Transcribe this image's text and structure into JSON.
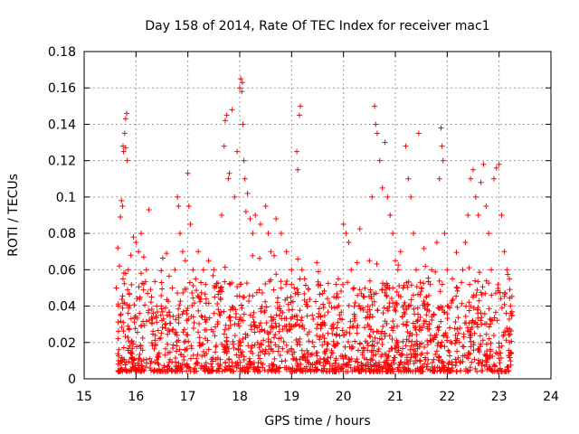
{
  "chart_data": {
    "type": "scatter",
    "title": "Day 158 of 2014, Rate Of TEC Index for receiver mac1",
    "xlabel": "GPS time / hours",
    "ylabel": "ROTI / TECUs",
    "xlim": [
      15,
      24
    ],
    "ylim": [
      0,
      0.18
    ],
    "x_ticks": [
      "15",
      "16",
      "17",
      "18",
      "19",
      "20",
      "21",
      "22",
      "23",
      "24"
    ],
    "y_ticks": [
      "0",
      "0.02",
      "0.04",
      "0.06",
      "0.08",
      "0.1",
      "0.12",
      "0.14",
      "0.16",
      "0.18"
    ],
    "grid": true,
    "marker": "+",
    "series_color": "#ff0000",
    "series": [
      {
        "name": "ROTI",
        "points": [
          [
            15.65,
            0.072
          ],
          [
            15.68,
            0.062
          ],
          [
            15.7,
            0.089
          ],
          [
            15.72,
            0.098
          ],
          [
            15.74,
            0.095
          ],
          [
            15.75,
            0.128
          ],
          [
            15.76,
            0.125
          ],
          [
            15.78,
            0.135
          ],
          [
            15.8,
            0.143
          ],
          [
            15.82,
            0.146
          ],
          [
            15.8,
            0.127
          ],
          [
            15.83,
            0.12
          ],
          [
            15.62,
            0.05
          ],
          [
            15.66,
            0.04
          ],
          [
            15.7,
            0.035
          ],
          [
            15.75,
            0.055
          ],
          [
            15.8,
            0.058
          ],
          [
            15.85,
            0.06
          ],
          [
            15.9,
            0.068
          ],
          [
            15.95,
            0.078
          ],
          [
            16.0,
            0.075
          ],
          [
            16.05,
            0.07
          ],
          [
            16.1,
            0.08
          ],
          [
            16.15,
            0.067
          ],
          [
            16.2,
            0.06
          ],
          [
            16.25,
            0.093
          ],
          [
            16.3,
            0.045
          ],
          [
            16.4,
            0.04
          ],
          [
            16.5,
            0.032
          ],
          [
            16.6,
            0.035
          ],
          [
            16.7,
            0.05
          ],
          [
            16.75,
            0.06
          ],
          [
            16.8,
            0.1
          ],
          [
            16.82,
            0.095
          ],
          [
            16.85,
            0.08
          ],
          [
            16.9,
            0.07
          ],
          [
            16.95,
            0.065
          ],
          [
            17.0,
            0.113
          ],
          [
            17.02,
            0.095
          ],
          [
            17.05,
            0.085
          ],
          [
            17.1,
            0.06
          ],
          [
            17.15,
            0.055
          ],
          [
            17.2,
            0.07
          ],
          [
            17.3,
            0.06
          ],
          [
            17.4,
            0.065
          ],
          [
            17.5,
            0.06
          ],
          [
            17.6,
            0.048
          ],
          [
            17.65,
            0.09
          ],
          [
            17.7,
            0.128
          ],
          [
            17.72,
            0.142
          ],
          [
            17.75,
            0.145
          ],
          [
            17.78,
            0.11
          ],
          [
            17.8,
            0.113
          ],
          [
            17.85,
            0.148
          ],
          [
            17.9,
            0.1
          ],
          [
            17.95,
            0.125
          ],
          [
            18.0,
            0.16
          ],
          [
            18.02,
            0.165
          ],
          [
            18.04,
            0.158
          ],
          [
            18.05,
            0.163
          ],
          [
            18.06,
            0.14
          ],
          [
            18.08,
            0.12
          ],
          [
            18.1,
            0.11
          ],
          [
            18.12,
            0.092
          ],
          [
            18.15,
            0.102
          ],
          [
            18.2,
            0.088
          ],
          [
            18.25,
            0.08
          ],
          [
            18.3,
            0.09
          ],
          [
            18.4,
            0.085
          ],
          [
            18.5,
            0.095
          ],
          [
            18.55,
            0.08
          ],
          [
            18.6,
            0.07
          ],
          [
            18.7,
            0.088
          ],
          [
            18.8,
            0.08
          ],
          [
            18.9,
            0.07
          ],
          [
            19.0,
            0.06
          ],
          [
            19.05,
            0.05
          ],
          [
            19.1,
            0.125
          ],
          [
            19.12,
            0.115
          ],
          [
            19.15,
            0.145
          ],
          [
            19.17,
            0.15
          ],
          [
            19.2,
            0.06
          ],
          [
            19.25,
            0.055
          ],
          [
            19.3,
            0.04
          ],
          [
            19.4,
            0.035
          ],
          [
            19.5,
            0.03
          ],
          [
            19.6,
            0.03
          ],
          [
            19.7,
            0.025
          ],
          [
            19.8,
            0.03
          ],
          [
            19.9,
            0.055
          ],
          [
            20.0,
            0.085
          ],
          [
            20.05,
            0.08
          ],
          [
            20.1,
            0.075
          ],
          [
            20.15,
            0.06
          ],
          [
            20.2,
            0.05
          ],
          [
            20.3,
            0.04
          ],
          [
            20.4,
            0.045
          ],
          [
            20.5,
            0.065
          ],
          [
            20.55,
            0.1
          ],
          [
            20.6,
            0.15
          ],
          [
            20.62,
            0.14
          ],
          [
            20.65,
            0.135
          ],
          [
            20.7,
            0.12
          ],
          [
            20.75,
            0.105
          ],
          [
            20.8,
            0.13
          ],
          [
            20.85,
            0.1
          ],
          [
            20.9,
            0.09
          ],
          [
            20.95,
            0.08
          ],
          [
            21.0,
            0.065
          ],
          [
            21.05,
            0.06
          ],
          [
            21.1,
            0.07
          ],
          [
            21.15,
            0.05
          ],
          [
            21.2,
            0.128
          ],
          [
            21.25,
            0.11
          ],
          [
            21.3,
            0.1
          ],
          [
            21.35,
            0.08
          ],
          [
            21.4,
            0.06
          ],
          [
            21.45,
            0.135
          ],
          [
            21.5,
            0.05
          ],
          [
            21.6,
            0.045
          ],
          [
            21.7,
            0.06
          ],
          [
            21.8,
            0.075
          ],
          [
            21.85,
            0.11
          ],
          [
            21.88,
            0.138
          ],
          [
            21.9,
            0.128
          ],
          [
            21.92,
            0.12
          ],
          [
            21.95,
            0.08
          ],
          [
            22.0,
            0.06
          ],
          [
            22.1,
            0.055
          ],
          [
            22.2,
            0.05
          ],
          [
            22.3,
            0.06
          ],
          [
            22.35,
            0.075
          ],
          [
            22.4,
            0.09
          ],
          [
            22.45,
            0.11
          ],
          [
            22.5,
            0.115
          ],
          [
            22.55,
            0.1
          ],
          [
            22.6,
            0.09
          ],
          [
            22.65,
            0.108
          ],
          [
            22.7,
            0.118
          ],
          [
            22.75,
            0.095
          ],
          [
            22.8,
            0.08
          ],
          [
            22.85,
            0.06
          ],
          [
            22.9,
            0.11
          ],
          [
            22.95,
            0.116
          ],
          [
            23.0,
            0.118
          ],
          [
            23.05,
            0.09
          ],
          [
            23.1,
            0.07
          ],
          [
            23.15,
            0.06
          ],
          [
            23.2,
            0.055
          ],
          [
            23.25,
            0.035
          ]
        ]
      }
    ]
  }
}
